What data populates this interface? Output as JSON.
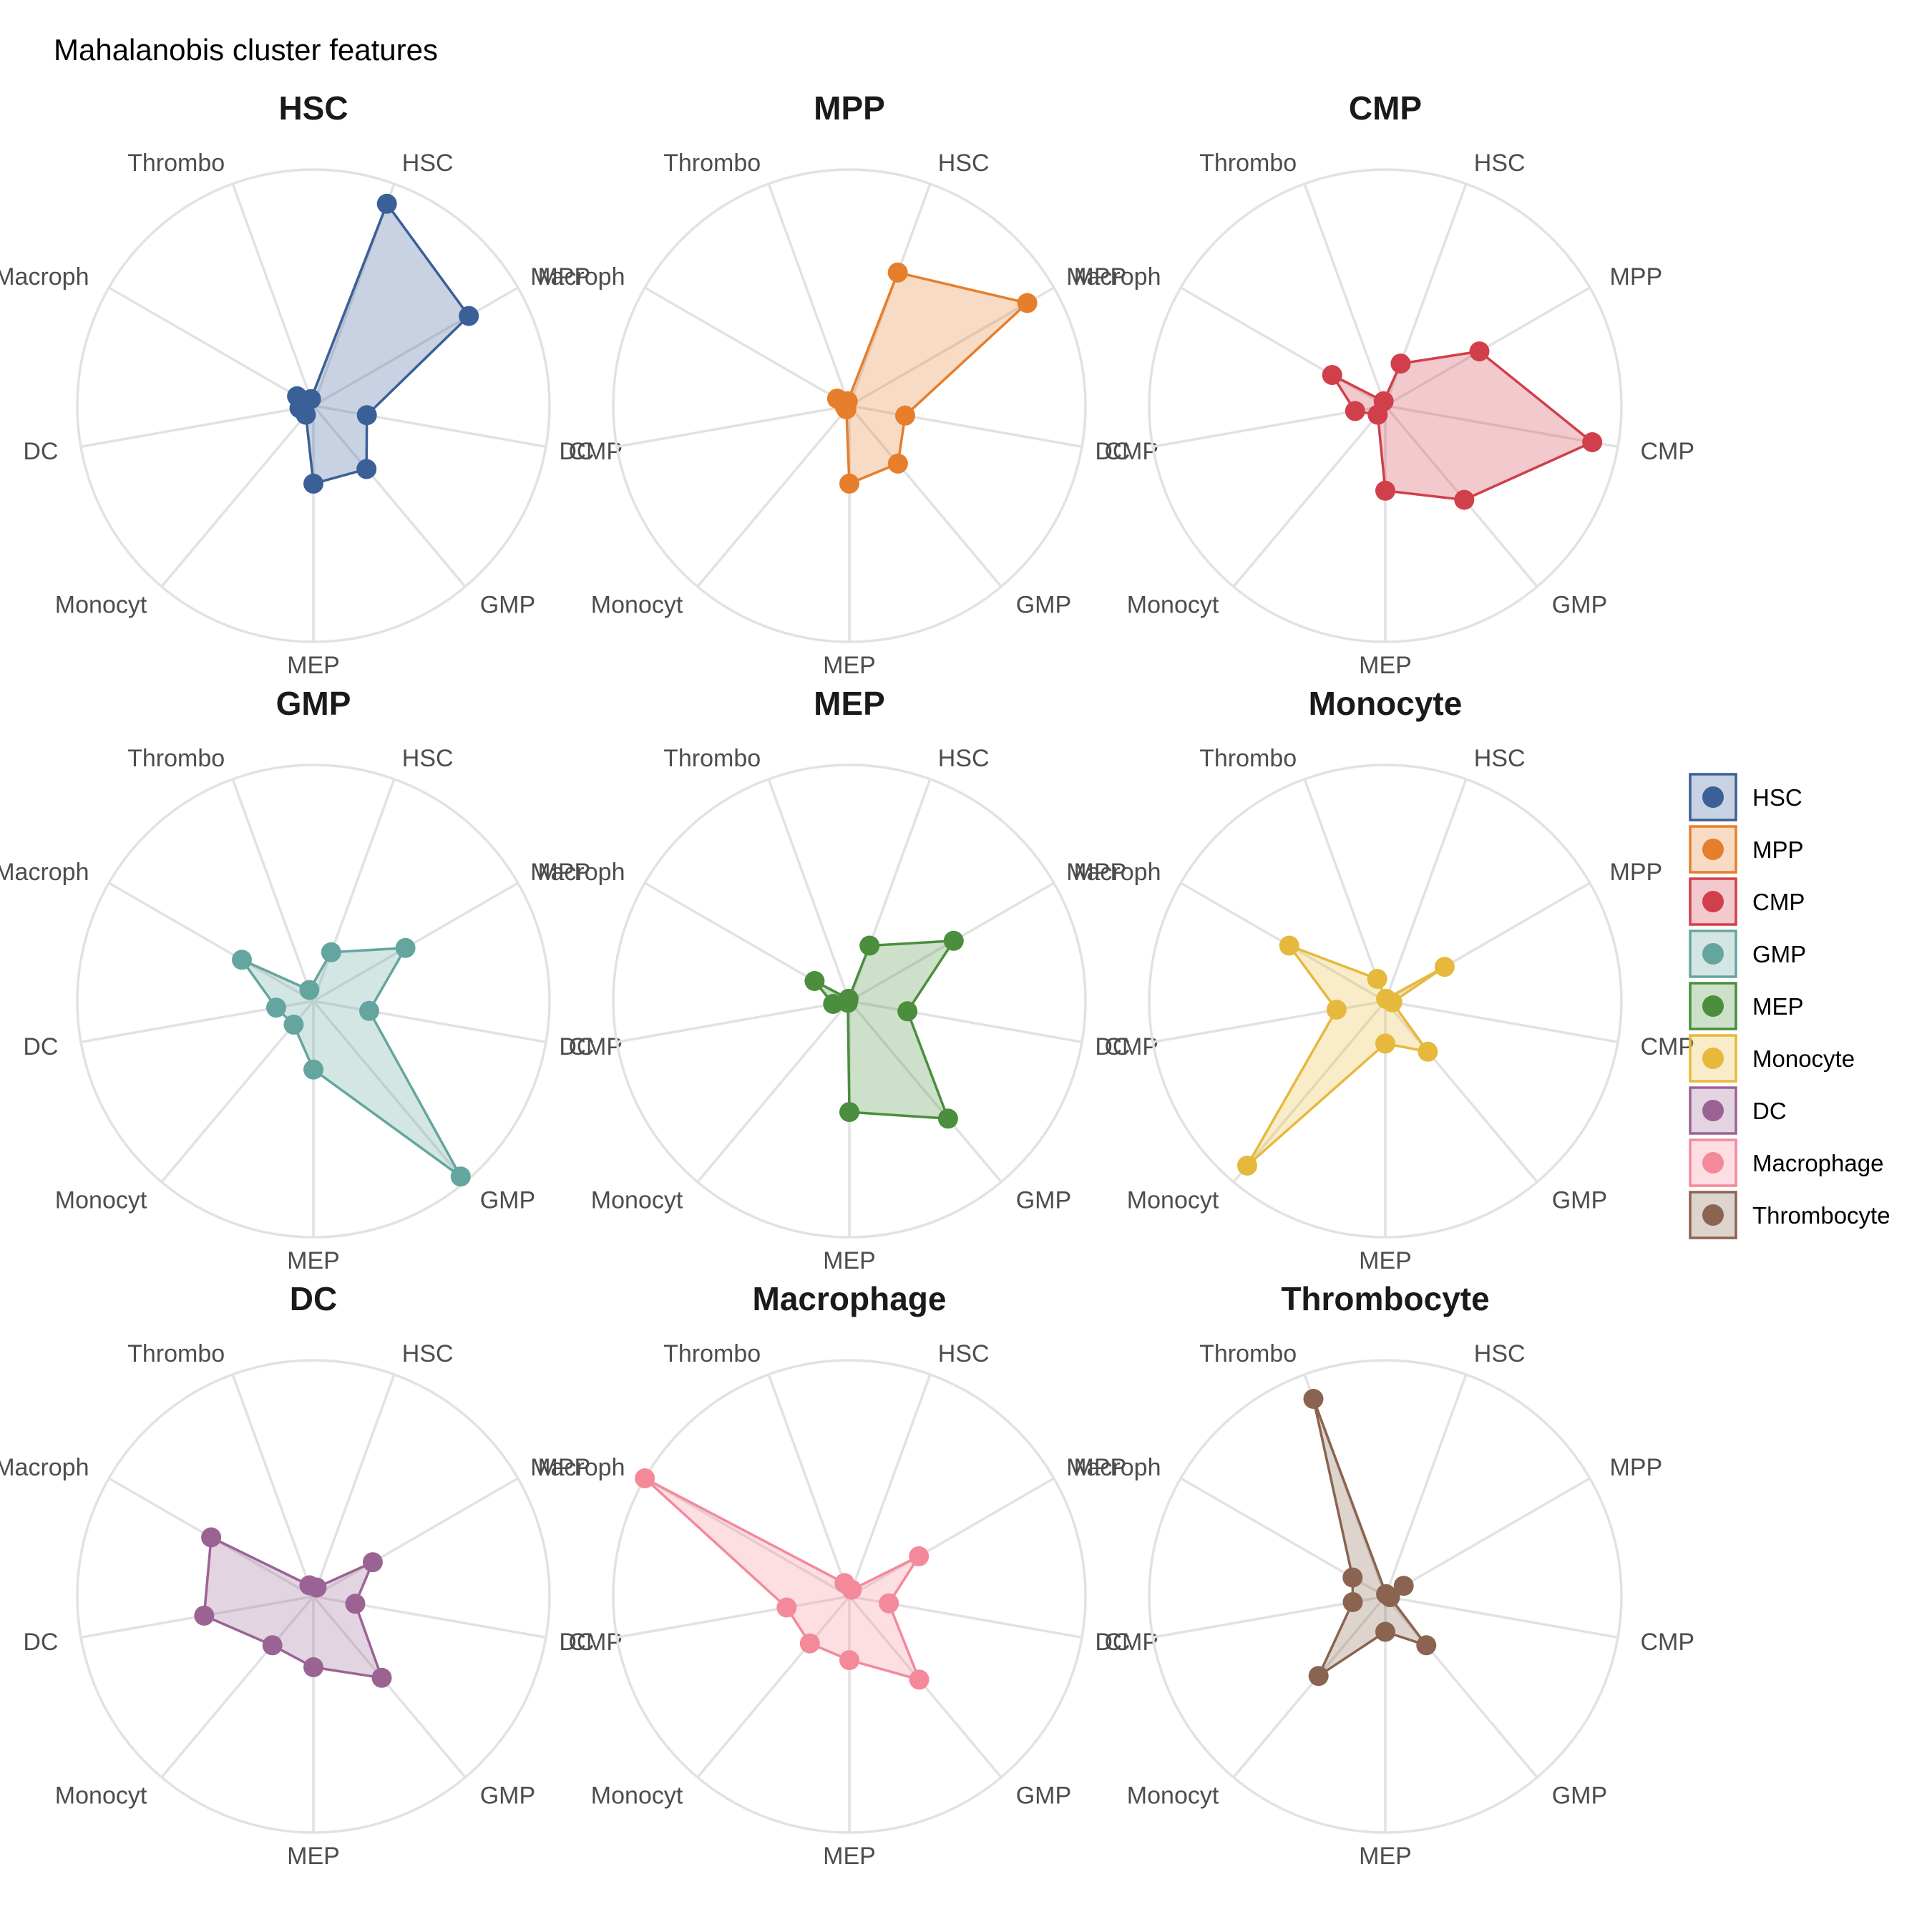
{
  "chart_data": {
    "type": "radar",
    "title": "Mahalanobis cluster features",
    "axes": [
      "HSC",
      "MPP",
      "CMP",
      "GMP",
      "MEP",
      "Monocyt",
      "DC",
      "Macroph",
      "Thrombo"
    ],
    "rlim": [
      0,
      1
    ],
    "grid": true,
    "legend_position": "right",
    "panels": [
      {
        "title": "HSC",
        "series": "HSC",
        "values": [
          0.91,
          0.76,
          0.23,
          0.35,
          0.33,
          0.05,
          0.06,
          0.08,
          0.03
        ]
      },
      {
        "title": "MPP",
        "series": "MPP",
        "values": [
          0.6,
          0.87,
          0.24,
          0.32,
          0.33,
          0.02,
          0.02,
          0.06,
          0.02
        ]
      },
      {
        "title": "CMP",
        "series": "CMP",
        "values": [
          0.19,
          0.46,
          0.89,
          0.52,
          0.36,
          0.05,
          0.13,
          0.26,
          0.02
        ]
      },
      {
        "title": "GMP",
        "series": "GMP",
        "values": [
          0.22,
          0.45,
          0.24,
          0.97,
          0.29,
          0.13,
          0.16,
          0.35,
          0.05
        ]
      },
      {
        "title": "MEP",
        "series": "MEP",
        "values": [
          0.25,
          0.51,
          0.25,
          0.65,
          0.47,
          0.01,
          0.07,
          0.17,
          0.01
        ]
      },
      {
        "title": "Monocyte",
        "series": "Monocyte",
        "values": [
          0.01,
          0.29,
          0.03,
          0.28,
          0.18,
          0.91,
          0.21,
          0.47,
          0.1
        ]
      },
      {
        "title": "DC",
        "series": "DC",
        "values": [
          0.04,
          0.29,
          0.18,
          0.45,
          0.3,
          0.27,
          0.47,
          0.5,
          0.05
        ]
      },
      {
        "title": "Macrophage",
        "series": "Macrophage",
        "values": [
          0.03,
          0.34,
          0.17,
          0.46,
          0.27,
          0.26,
          0.27,
          1.0,
          0.06
        ]
      },
      {
        "title": "Thrombocyte",
        "series": "Thrombocyte",
        "values": [
          0.01,
          0.09,
          0.02,
          0.27,
          0.15,
          0.44,
          0.14,
          0.16,
          0.89
        ]
      }
    ],
    "legend": [
      {
        "name": "HSC",
        "color": "#3B5F97"
      },
      {
        "name": "MPP",
        "color": "#E67E2B"
      },
      {
        "name": "CMP",
        "color": "#D13F4A"
      },
      {
        "name": "GMP",
        "color": "#64A69F"
      },
      {
        "name": "MEP",
        "color": "#4A8E3E"
      },
      {
        "name": "Monocyte",
        "color": "#E6B93C"
      },
      {
        "name": "DC",
        "color": "#9B6394"
      },
      {
        "name": "Macrophage",
        "color": "#F4899A"
      },
      {
        "name": "Thrombocyte",
        "color": "#8A6450"
      }
    ]
  }
}
